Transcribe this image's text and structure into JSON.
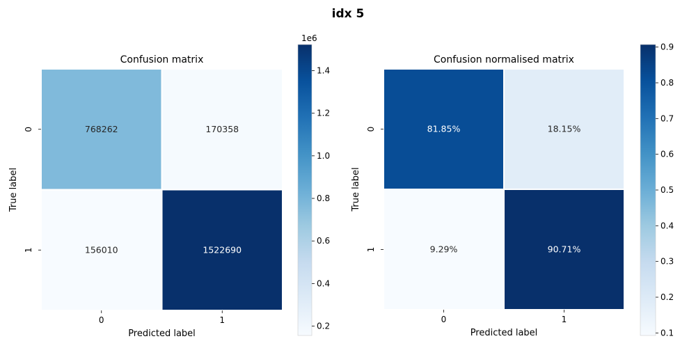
{
  "figure": {
    "suptitle": "idx 5"
  },
  "chart_data": [
    {
      "type": "heatmap",
      "title": "Confusion matrix",
      "xlabel": "Predicted label",
      "ylabel": "True label",
      "x_categories": [
        "0",
        "1"
      ],
      "y_categories": [
        "0",
        "1"
      ],
      "values": [
        [
          768262,
          170358
        ],
        [
          156010,
          1522690
        ]
      ],
      "cell_labels": [
        [
          "768262",
          "170358"
        ],
        [
          "156010",
          "1522690"
        ]
      ],
      "colorbar": {
        "min": 156010,
        "max": 1522690,
        "ticks": [
          0.2,
          0.4,
          0.6,
          0.8,
          1.0,
          1.2,
          1.4
        ],
        "tick_labels": [
          "0.2",
          "0.4",
          "0.6",
          "0.8",
          "1.0",
          "1.2",
          "1.4"
        ],
        "tick_scale": 1000000,
        "offset_text": "1e6"
      },
      "colormap": "Blues"
    },
    {
      "type": "heatmap",
      "title": "Confusion normalised matrix",
      "xlabel": "Predicted label",
      "ylabel": "True label",
      "x_categories": [
        "0",
        "1"
      ],
      "y_categories": [
        "0",
        "1"
      ],
      "values": [
        [
          0.8185,
          0.1815
        ],
        [
          0.0929,
          0.9071
        ]
      ],
      "cell_labels": [
        [
          "81.85%",
          "18.15%"
        ],
        [
          "9.29%",
          "90.71%"
        ]
      ],
      "colorbar": {
        "min": 0.0929,
        "max": 0.9071,
        "ticks": [
          0.1,
          0.2,
          0.3,
          0.4,
          0.5,
          0.6,
          0.7,
          0.8,
          0.9
        ],
        "tick_labels": [
          "0.1",
          "0.2",
          "0.3",
          "0.4",
          "0.5",
          "0.6",
          "0.7",
          "0.8",
          "0.9"
        ],
        "tick_scale": 1,
        "offset_text": ""
      },
      "colormap": "Blues"
    }
  ]
}
